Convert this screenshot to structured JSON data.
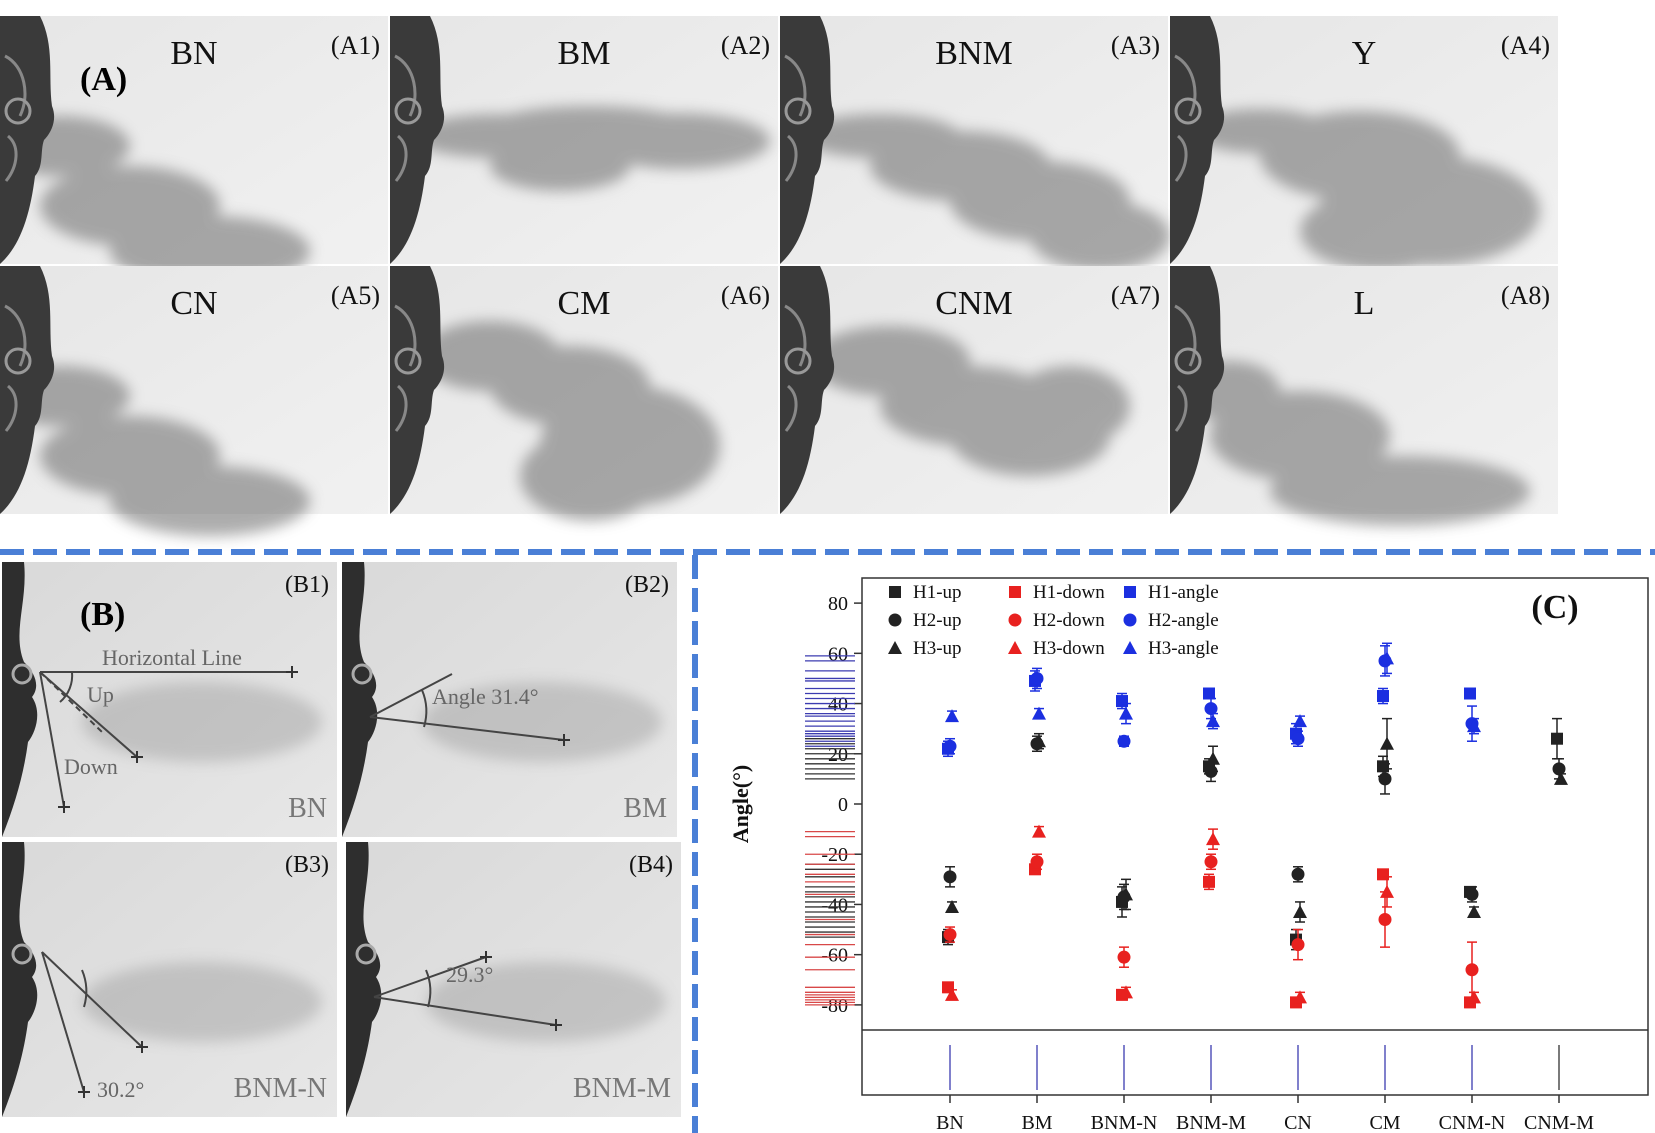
{
  "figure": {
    "panel_a": {
      "label": "(A)",
      "tiles": [
        {
          "tag": "(A1)",
          "title": "BN",
          "plume": "down-short"
        },
        {
          "tag": "(A2)",
          "title": "BM",
          "plume": "straight"
        },
        {
          "tag": "(A3)",
          "title": "BNM",
          "plume": "spread"
        },
        {
          "tag": "(A4)",
          "title": "Y",
          "plume": "strong-down"
        },
        {
          "tag": "(A5)",
          "title": "CN",
          "plume": "down-short"
        },
        {
          "tag": "(A6)",
          "title": "CM",
          "plume": "big-cloud"
        },
        {
          "tag": "(A7)",
          "title": "CNM",
          "plume": "mixed"
        },
        {
          "tag": "(A8)",
          "title": "L",
          "plume": "down-long"
        }
      ]
    },
    "panel_b": {
      "label": "(B)",
      "tiles": [
        {
          "tag": "(B1)",
          "name": "BN",
          "texts": [
            "Horizontal Line",
            "Up",
            "Down"
          ]
        },
        {
          "tag": "(B2)",
          "name": "BM",
          "texts": [
            "Angle  31.4°"
          ]
        },
        {
          "tag": "(B3)",
          "name": "BNM-N",
          "texts": [
            "30.2°"
          ]
        },
        {
          "tag": "(B4)",
          "name": "BNM-M",
          "texts": [
            "29.3°"
          ]
        }
      ]
    },
    "panel_c_label": "(C)"
  },
  "colors": {
    "black": "#222222",
    "red": "#e8211f",
    "blue": "#1b2fe0",
    "rug_blue": "#3c3cb0",
    "rug_red": "#d84848",
    "rug_black": "#333333",
    "divider": "#4a7fd6"
  },
  "chart_data": {
    "type": "scatter",
    "ylabel": "Angle(°)",
    "ylim": [
      -90,
      90
    ],
    "yticks": [
      80,
      60,
      40,
      20,
      0,
      -20,
      -40,
      -60,
      -80
    ],
    "categories": [
      "BN",
      "BM",
      "BNM-N",
      "BNM-M",
      "CN",
      "CM",
      "CNM-N",
      "CNM-M"
    ],
    "legend": [
      [
        "H1-up",
        "H1-down",
        "H1-angle"
      ],
      [
        "H2-up",
        "H2-down",
        "H2-angle"
      ],
      [
        "H3-up",
        "H3-down",
        "H3-angle"
      ]
    ],
    "series": [
      {
        "name": "H1-up",
        "color": "black",
        "marker": "square",
        "values": [
          -53,
          null,
          -39,
          15,
          -54,
          15,
          -35,
          26
        ],
        "errors": [
          3,
          0,
          6,
          3,
          4,
          4,
          2,
          8
        ]
      },
      {
        "name": "H2-up",
        "color": "black",
        "marker": "circle",
        "values": [
          -29,
          24,
          -37,
          13,
          -28,
          10,
          -36,
          14
        ],
        "errors": [
          4,
          3,
          5,
          4,
          3,
          6,
          3,
          4
        ]
      },
      {
        "name": "H3-up",
        "color": "black",
        "marker": "triangle",
        "values": [
          -41,
          25,
          -36,
          18,
          -43,
          24,
          -43,
          10
        ],
        "errors": [
          2,
          3,
          6,
          5,
          4,
          10,
          2,
          2
        ]
      },
      {
        "name": "H1-down",
        "color": "red",
        "marker": "square",
        "values": [
          -73,
          -26,
          -76,
          -31,
          -79,
          -28,
          -79,
          null
        ],
        "errors": [
          2,
          2,
          2,
          3,
          2,
          2,
          2,
          0
        ]
      },
      {
        "name": "H2-down",
        "color": "red",
        "marker": "circle",
        "values": [
          -52,
          -23,
          -61,
          -23,
          -56,
          -46,
          -66,
          null
        ],
        "errors": [
          3,
          3,
          4,
          3,
          6,
          11,
          11,
          0
        ]
      },
      {
        "name": "H3-down",
        "color": "red",
        "marker": "triangle",
        "values": [
          -76,
          -11,
          -75,
          -14,
          -77,
          -35,
          -77,
          null
        ],
        "errors": [
          2,
          2,
          2,
          4,
          2,
          6,
          2,
          0
        ]
      },
      {
        "name": "H1-angle",
        "color": "blue",
        "marker": "square",
        "values": [
          22,
          49,
          41,
          44,
          28,
          43,
          44,
          null
        ],
        "errors": [
          3,
          4,
          3,
          2,
          4,
          3,
          2,
          0
        ]
      },
      {
        "name": "H2-angle",
        "color": "blue",
        "marker": "circle",
        "values": [
          23,
          50,
          25,
          38,
          26,
          57,
          32,
          null
        ],
        "errors": [
          3,
          4,
          2,
          4,
          3,
          6,
          7,
          0
        ]
      },
      {
        "name": "H3-angle",
        "color": "blue",
        "marker": "triangle",
        "values": [
          35,
          36,
          36,
          33,
          33,
          58,
          31,
          null
        ],
        "errors": [
          2,
          2,
          4,
          3,
          2,
          6,
          3,
          0
        ]
      }
    ],
    "rug": {
      "blue": [
        59,
        57,
        53,
        50,
        49,
        46,
        44,
        42,
        40,
        38,
        36,
        35,
        33,
        31,
        29,
        28,
        27,
        25,
        23
      ],
      "black": [
        26,
        24,
        22,
        20,
        18,
        16,
        14,
        12,
        10,
        -24,
        -26,
        -29,
        -33,
        -35,
        -37,
        -39,
        -41,
        -43,
        -45,
        -47,
        -49,
        -51,
        -53
      ],
      "red": [
        -11,
        -13,
        -20,
        -24,
        -28,
        -31,
        -36,
        -46,
        -52,
        -56,
        -61,
        -66,
        -73,
        -75,
        -76,
        -77,
        -78,
        -79,
        -80
      ]
    }
  }
}
